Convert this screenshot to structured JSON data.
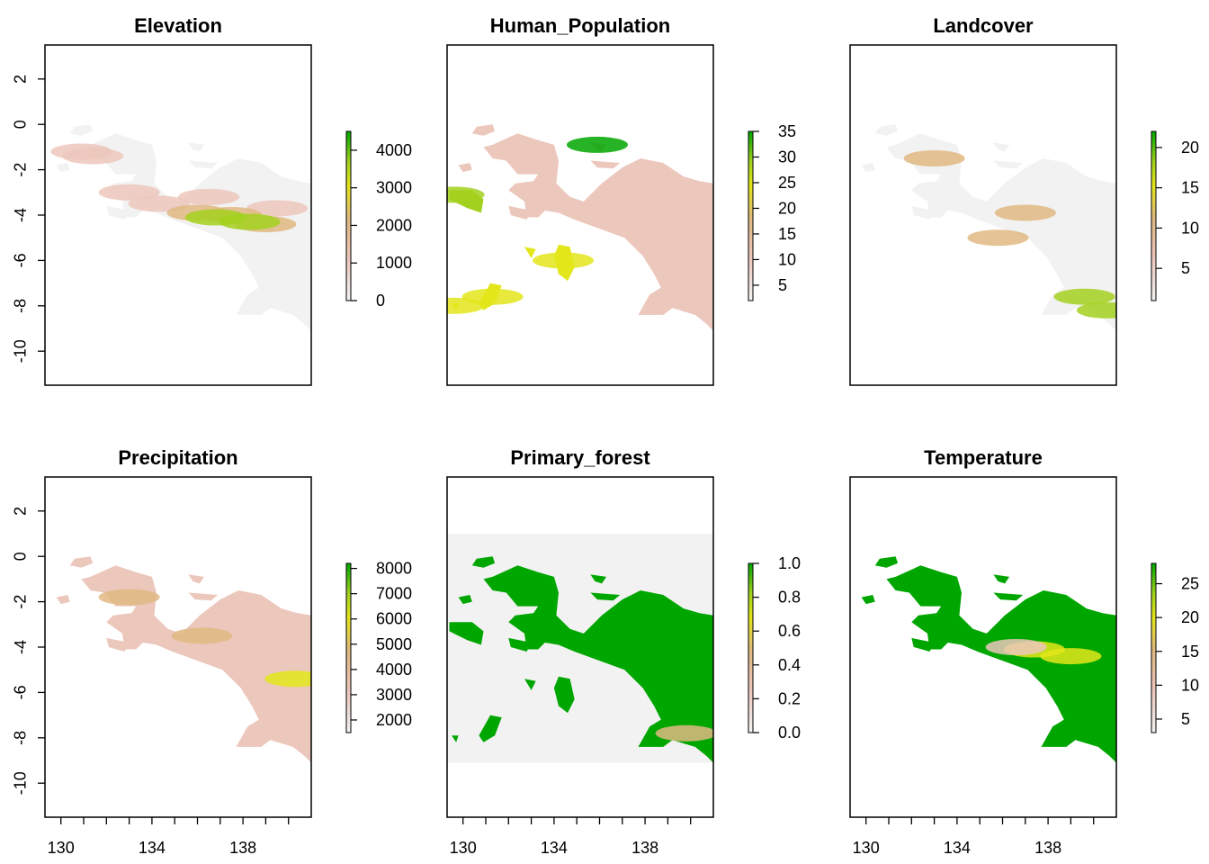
{
  "figure": {
    "layout": "2x3 raster panels, shared longitude/latitude axes",
    "x_ticks": [
      "130",
      "134",
      "138"
    ],
    "y_ticks": [
      "2",
      "0",
      "-2",
      "-4",
      "-6",
      "-8",
      "-10"
    ]
  },
  "chart_data": [
    {
      "type": "heatmap",
      "title": "Elevation",
      "xlim": [
        129.3,
        141.0
      ],
      "ylim": [
        -11.5,
        3.5
      ],
      "legend": {
        "min": 0,
        "max": 4500,
        "ticks": [
          "0",
          "1000",
          "2000",
          "3000",
          "4000"
        ],
        "tick_values": [
          0,
          1000,
          2000,
          3000,
          4000
        ]
      },
      "colormap": "terrain (pink-tan-yellow-green)",
      "x_axis_visible": false,
      "y_axis_visible": true
    },
    {
      "type": "heatmap",
      "title": "Human_Population",
      "xlim": [
        129.3,
        141.0
      ],
      "ylim": [
        -11.5,
        3.5
      ],
      "legend": {
        "min": 2,
        "max": 35,
        "ticks": [
          "5",
          "10",
          "15",
          "20",
          "25",
          "30",
          "35"
        ],
        "tick_values": [
          5,
          10,
          15,
          20,
          25,
          30,
          35
        ]
      },
      "colormap": "terrain (pink-tan-yellow-green)",
      "x_axis_visible": false,
      "y_axis_visible": false
    },
    {
      "type": "heatmap",
      "title": "Landcover",
      "xlim": [
        129.3,
        141.0
      ],
      "ylim": [
        -11.5,
        3.5
      ],
      "legend": {
        "min": 1,
        "max": 22,
        "ticks": [
          "5",
          "10",
          "15",
          "20"
        ],
        "tick_values": [
          5,
          10,
          15,
          20
        ]
      },
      "colormap": "terrain (pink-tan-yellow-green)",
      "x_axis_visible": false,
      "y_axis_visible": false
    },
    {
      "type": "heatmap",
      "title": "Precipitation",
      "xlim": [
        129.3,
        141.0
      ],
      "ylim": [
        -11.5,
        3.5
      ],
      "legend": {
        "min": 1500,
        "max": 8200,
        "ticks": [
          "2000",
          "3000",
          "4000",
          "5000",
          "6000",
          "7000",
          "8000"
        ],
        "tick_values": [
          2000,
          3000,
          4000,
          5000,
          6000,
          7000,
          8000
        ]
      },
      "colormap": "terrain (pink-tan-yellow-green)",
      "x_axis_visible": true,
      "y_axis_visible": true
    },
    {
      "type": "heatmap",
      "title": "Primary_forest",
      "xlim": [
        129.3,
        141.0
      ],
      "ylim": [
        -11.5,
        3.5
      ],
      "legend": {
        "min": 0,
        "max": 1,
        "ticks": [
          "0.0",
          "0.2",
          "0.4",
          "0.6",
          "0.8",
          "1.0"
        ],
        "tick_values": [
          0,
          0.2,
          0.4,
          0.6,
          0.8,
          1.0
        ]
      },
      "colormap": "terrain (pink-tan-yellow-green)",
      "x_axis_visible": true,
      "y_axis_visible": false
    },
    {
      "type": "heatmap",
      "title": "Temperature",
      "xlim": [
        129.3,
        141.0
      ],
      "ylim": [
        -11.5,
        3.5
      ],
      "legend": {
        "min": 3,
        "max": 28,
        "ticks": [
          "5",
          "10",
          "15",
          "20",
          "25"
        ],
        "tick_values": [
          5,
          10,
          15,
          20,
          25
        ]
      },
      "colormap": "terrain (pink-tan-yellow-green)",
      "x_axis_visible": true,
      "y_axis_visible": false
    }
  ],
  "colors": {
    "background_na": "#ffffff",
    "low": "#f2f2f2",
    "pink": "#ecc7bc",
    "tan": "#e0b882",
    "yellow": "#e3e61a",
    "lime": "#a3d11f",
    "green": "#00a600",
    "frame": "#000000"
  }
}
